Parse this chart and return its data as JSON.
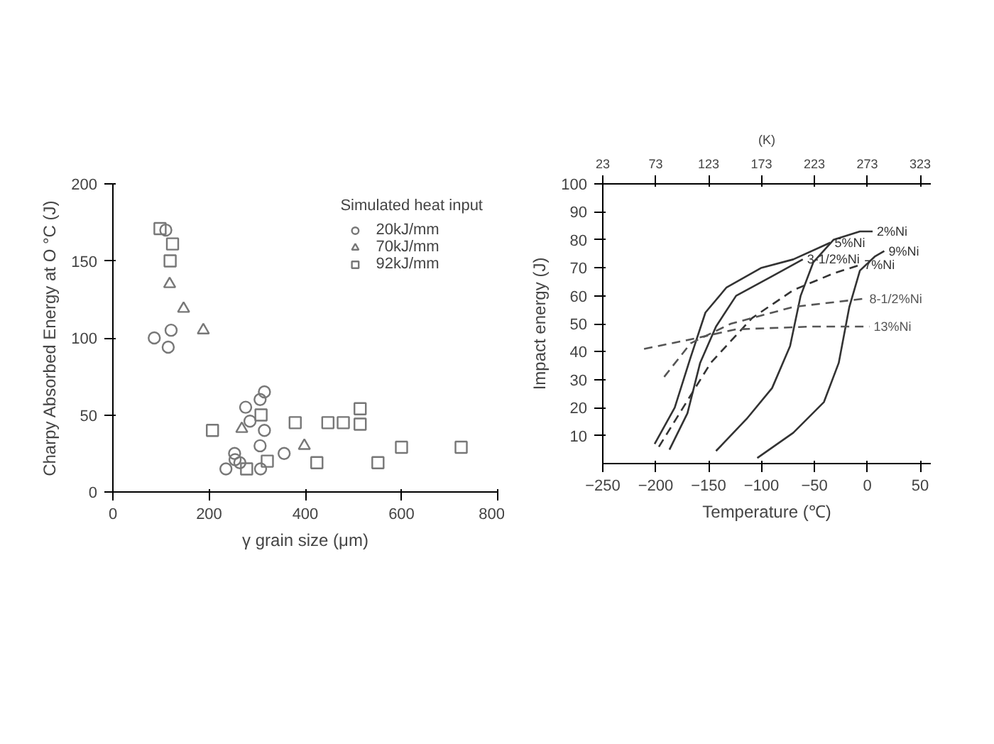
{
  "chart_data": [
    {
      "type": "scatter",
      "xlabel": "γ grain size (μm)",
      "ylabel": "Charpy Absorbed Energy at O °C (J)",
      "legend_title": "Simulated heat input",
      "legend": "top right",
      "grid": false,
      "xlim": [
        0,
        800
      ],
      "ylim": [
        0,
        200
      ],
      "xticks": [
        0,
        200,
        400,
        600,
        800
      ],
      "yticks": [
        0,
        50,
        100,
        150,
        200
      ],
      "series": [
        {
          "name": "20kJ/mm",
          "color": "#777777",
          "marker": "circle",
          "x": [
            86,
            121,
            115,
            110,
            276,
            285,
            306,
            315,
            315,
            306,
            253,
            254,
            264,
            235,
            307,
            356
          ],
          "values": [
            100,
            105,
            94,
            170,
            55,
            46,
            60,
            65,
            40,
            30,
            25,
            21,
            19,
            15,
            15,
            25
          ]
        },
        {
          "name": "70kJ/mm",
          "color": "#777777",
          "marker": "triangle",
          "x": [
            118,
            147,
            188,
            268,
            398
          ],
          "values": [
            135,
            119,
            105,
            41,
            30
          ]
        },
        {
          "name": "92kJ/mm",
          "color": "#777777",
          "marker": "square",
          "x": [
            98,
            124,
            119,
            207,
            308,
            321,
            278,
            379,
            424,
            447,
            479,
            514,
            514,
            551,
            600,
            724
          ],
          "values": [
            171,
            161,
            150,
            40,
            50,
            20,
            15,
            45,
            19,
            45,
            45,
            54,
            44,
            19,
            29,
            29
          ]
        }
      ]
    },
    {
      "type": "line",
      "xlabel": "Temperature (℃)",
      "ylabel": "Impact energy (J)",
      "x2label": "(K)",
      "grid": false,
      "marker": "none",
      "xlim": [
        -250,
        60
      ],
      "ylim": [
        0,
        100
      ],
      "xticks": [
        -250,
        -200,
        -150,
        -100,
        -50,
        0,
        50
      ],
      "yticks": [
        10,
        20,
        30,
        40,
        50,
        60,
        70,
        80,
        90,
        100
      ],
      "x2lim": [
        23,
        333
      ],
      "x2ticks": [
        23,
        73,
        123,
        173,
        223,
        273,
        323
      ],
      "series": [
        {
          "name": "2%Ni",
          "color": "#333333",
          "line_style": "solid",
          "x": [
            -143,
            -114,
            -90,
            -73,
            -63,
            -51,
            -32,
            -7,
            5
          ],
          "values": [
            4.5,
            16,
            27,
            42,
            60,
            72,
            80,
            83,
            83
          ]
        },
        {
          "name": "9%Ni",
          "color": "#333333",
          "line_style": "solid",
          "x": [
            -104,
            -70,
            -41,
            -27,
            -17,
            -7,
            7,
            16
          ],
          "values": [
            2,
            11,
            22,
            36,
            56,
            69,
            74,
            76
          ]
        },
        {
          "name": "5%Ni",
          "color": "#333333",
          "line_style": "solid",
          "x": [
            -201,
            -182,
            -167,
            -153,
            -133,
            -100,
            -70,
            -35
          ],
          "values": [
            7,
            20,
            38,
            54,
            63,
            70,
            73,
            79
          ]
        },
        {
          "name": "3-1/2%Ni",
          "color": "#333333",
          "line_style": "solid",
          "x": [
            -187,
            -170,
            -158,
            -143,
            -124,
            -90,
            -61
          ],
          "values": [
            5,
            18,
            36,
            49,
            60,
            67,
            73
          ]
        },
        {
          "name": "7%Ni",
          "color": "#333333",
          "line_style": "dashed",
          "x": [
            -197,
            -148,
            -109,
            -70,
            -32,
            -7
          ],
          "values": [
            6,
            36,
            52,
            62,
            68,
            71
          ]
        },
        {
          "name": "8-1/2%Ni",
          "color": "#555555",
          "line_style": "dashed",
          "x": [
            -192,
            -167,
            -129,
            -70,
            -2
          ],
          "values": [
            31,
            43,
            50,
            56,
            59
          ]
        },
        {
          "name": "13%Ni",
          "color": "#555555",
          "line_style": "dashed",
          "x": [
            -211,
            -172,
            -124,
            -51,
            2
          ],
          "values": [
            41,
            44,
            48,
            49,
            49
          ]
        }
      ]
    }
  ]
}
